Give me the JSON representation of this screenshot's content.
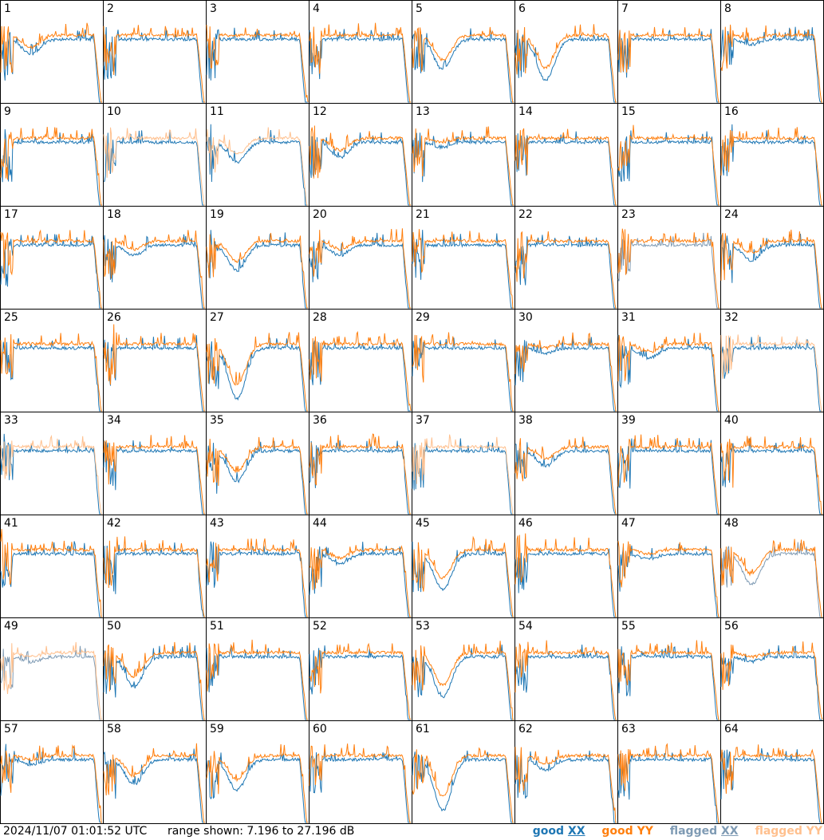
{
  "chart_data": {
    "type": "line",
    "panels": [
      "1",
      "2",
      "3",
      "4",
      "5",
      "6",
      "7",
      "8",
      "9",
      "10",
      "11",
      "12",
      "13",
      "14",
      "15",
      "16",
      "17",
      "18",
      "19",
      "20",
      "21",
      "22",
      "23",
      "24",
      "25",
      "26",
      "27",
      "28",
      "29",
      "30",
      "31",
      "32",
      "33",
      "34",
      "35",
      "36",
      "37",
      "38",
      "39",
      "40",
      "41",
      "42",
      "43",
      "44",
      "45",
      "46",
      "47",
      "48",
      "49",
      "50",
      "51",
      "52",
      "53",
      "54",
      "55",
      "56",
      "57",
      "58",
      "59",
      "60",
      "61",
      "62",
      "63",
      "64"
    ],
    "flagged": {
      "xx": [
        23,
        48,
        49
      ],
      "yy": [
        10,
        11,
        32,
        33,
        37,
        49
      ]
    },
    "range_min_db": 7.196,
    "range_max_db": 27.196,
    "grid": "8x8",
    "series_names": [
      "good XX",
      "good YY",
      "flagged XX",
      "flagged YY"
    ]
  },
  "footer": {
    "timestamp": "2024/11/07 01:01:52 UTC",
    "range_text": "range shown: 7.196 to 27.196 dB"
  },
  "legend": {
    "good": "good",
    "flagged": "flagged",
    "xx": "XX",
    "yy": "YY"
  },
  "colors": {
    "good_xx": "#1f77b4",
    "good_yy": "#ff7f0e",
    "flagged_xx": "#7f9bb4",
    "flagged_yy": "#ffc08e"
  }
}
